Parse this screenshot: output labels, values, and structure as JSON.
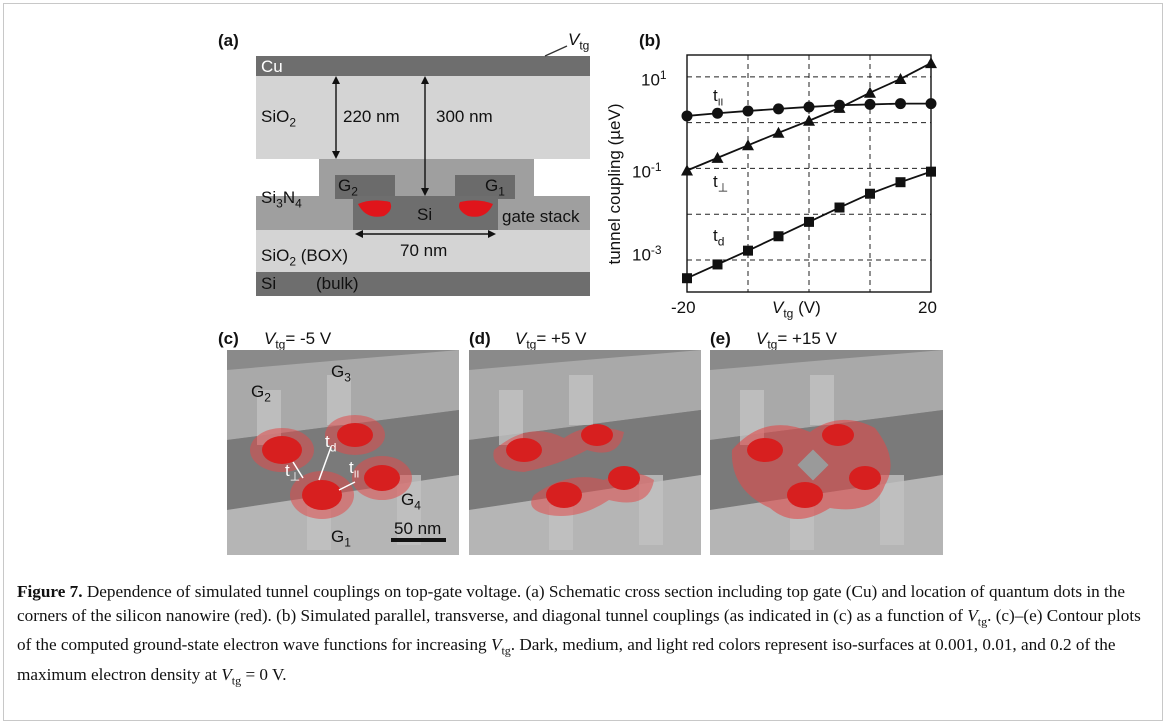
{
  "panel_a": {
    "label": "(a)",
    "vtg_label": "V",
    "vtg_sub": "tg",
    "layers": {
      "cu": "Cu",
      "sio2": "SiO",
      "sio2_sub": "2",
      "si3n4": "Si",
      "si3n4_sub1": "3",
      "si3n4_n": "N",
      "si3n4_sub2": "4",
      "box": "SiO",
      "box_sub": "2",
      "box_tail": " (BOX)",
      "bulk_si": "Si",
      "bulk_tail": "(bulk)",
      "wire": "Si",
      "gate_stack": "gate stack"
    },
    "gates": {
      "g2": "G",
      "g2_sub": "2",
      "g1": "G",
      "g1_sub": "1"
    },
    "dims": {
      "d220": "220 nm",
      "d300": "300 nm",
      "d70": "70 nm"
    }
  },
  "panel_b": {
    "label": "(b)",
    "ylabel": "tunnel coupling (µeV)",
    "xlabel_v": "V",
    "xlabel_sub": "tg",
    "xlabel_unit": " (V)",
    "ytick_labels": [
      "10",
      "10",
      "10"
    ],
    "ytick_exp": [
      "1",
      "-1",
      "-3"
    ],
    "xtick_labels": [
      "-20",
      "20"
    ],
    "curve_labels": {
      "t_par": "t",
      "t_par_sub": "II",
      "t_perp": "t",
      "t_perp_sub": "⊥",
      "t_d": "t",
      "t_d_sub": "d"
    }
  },
  "chart_data": {
    "type": "line",
    "xlabel": "Vtg (V)",
    "ylabel": "tunnel coupling (µeV)",
    "yscale": "log",
    "xlim": [
      -20,
      20
    ],
    "ylim": [
      0.0002,
      30
    ],
    "x": [
      -20,
      -15,
      -10,
      -5,
      0,
      5,
      10,
      15,
      20
    ],
    "series": [
      {
        "name": "t∥",
        "marker": "circle",
        "values": [
          1.4,
          1.6,
          1.8,
          2.0,
          2.2,
          2.4,
          2.5,
          2.6,
          2.6
        ]
      },
      {
        "name": "t⊥",
        "marker": "triangle",
        "values": [
          0.09,
          0.17,
          0.32,
          0.6,
          1.1,
          2.1,
          4.5,
          9,
          20
        ]
      },
      {
        "name": "td",
        "marker": "square",
        "values": [
          0.0004,
          0.0008,
          0.0016,
          0.0033,
          0.0068,
          0.014,
          0.028,
          0.05,
          0.085
        ]
      }
    ],
    "grid": true
  },
  "panel_c": {
    "label": "(c)",
    "v": "V",
    "v_sub": "tg",
    "value": "= -5 V",
    "gates": {
      "g1": "G",
      "g1_sub": "1",
      "g2": "G",
      "g2_sub": "2",
      "g3": "G",
      "g3_sub": "3",
      "g4": "G",
      "g4_sub": "4"
    },
    "couplings": {
      "td": "t",
      "td_sub": "d",
      "tperp": "t",
      "tperp_sub": "⊥",
      "tpar": "t",
      "tpar_sub": "II"
    },
    "scalebar": "50 nm"
  },
  "panel_d": {
    "label": "(d)",
    "v": "V",
    "v_sub": "tg",
    "value": "= +5 V"
  },
  "panel_e": {
    "label": "(e)",
    "v": "V",
    "v_sub": "tg",
    "value": "= +15 V"
  },
  "caption": {
    "fig": "Figure 7.",
    "p1": " Dependence of simulated tunnel couplings on top-gate voltage. (a) Schematic cross section including top gate (Cu) and location of quantum dots in the corners of the silicon nanowire (red). (b) Simulated parallel, transverse, and diagonal tunnel couplings (as indicated in (c) as a function of ",
    "v1": "V",
    "v1_sub": "tg",
    "p2": ". (c)–(e) Contour plots of the computed ground-state electron wave functions for increasing ",
    "v2": "V",
    "v2_sub": "tg",
    "p3": ". Dark, medium, and light red colors represent iso-surfaces at 0.001, 0.01, and 0.2 of the maximum electron density at ",
    "v3": "V",
    "v3_sub": "tg",
    "p4": " = 0 V."
  }
}
